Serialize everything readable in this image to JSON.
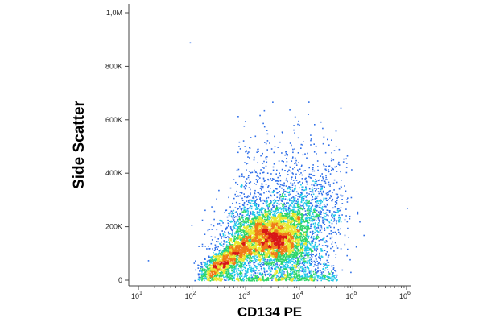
{
  "chart_data": {
    "type": "scatter",
    "subtype": "density-dot-plot",
    "title": "",
    "xlabel": "CD134 PE",
    "ylabel": "Side Scatter",
    "x_scale": "log",
    "xlim": [
      10,
      1000000
    ],
    "ylim": [
      0,
      1000000
    ],
    "grid": false,
    "legend": "none",
    "x_ticks": [
      {
        "value": 10,
        "base": "10",
        "exp": "1"
      },
      {
        "value": 100,
        "base": "10",
        "exp": "2"
      },
      {
        "value": 1000,
        "base": "10",
        "exp": "3"
      },
      {
        "value": 10000,
        "base": "10",
        "exp": "4"
      },
      {
        "value": 100000,
        "base": "10",
        "exp": "5"
      },
      {
        "value": 1000000,
        "base": "10",
        "exp": "6"
      }
    ],
    "y_ticks": [
      {
        "value": 0,
        "label": "0"
      },
      {
        "value": 200000,
        "label": "200K"
      },
      {
        "value": 400000,
        "label": "400K"
      },
      {
        "value": 600000,
        "label": "600K"
      },
      {
        "value": 800000,
        "label": "800K"
      },
      {
        "value": 1000000,
        "label": "1,0M"
      }
    ],
    "density_colors": [
      "#1a1aa8",
      "#2e6ee8",
      "#22c8e8",
      "#2ed66a",
      "#e8e830",
      "#f07a18",
      "#d81818"
    ],
    "population": {
      "center": {
        "x": 3500,
        "y": 160000
      },
      "spread_log10_x": 0.45,
      "spread_y": 55000,
      "tail": {
        "x_range": [
          200,
          1000
        ],
        "y_range": [
          30000,
          130000
        ]
      },
      "max_y": 680000
    },
    "outliers": [
      {
        "x": 90,
        "y": 890000
      },
      {
        "x": 1000000,
        "y": 270000
      },
      {
        "x": 15,
        "y": 75000
      }
    ]
  }
}
